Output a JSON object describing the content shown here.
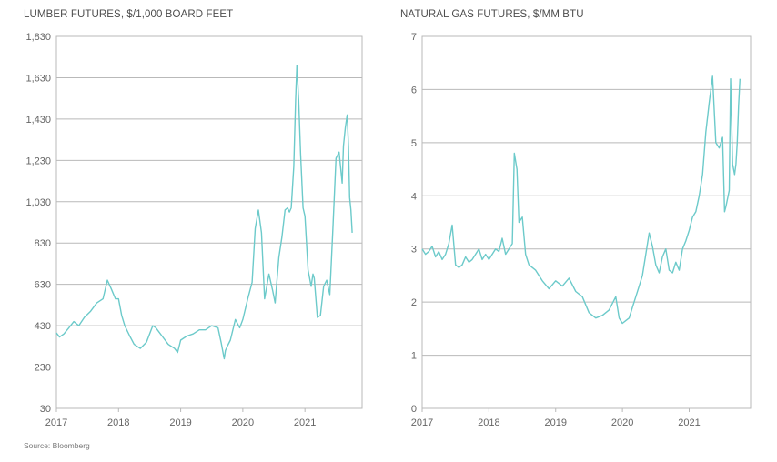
{
  "chart_data": [
    {
      "type": "line",
      "title": "LUMBER FUTURES, $/1,000 BOARD FEET",
      "xlabel": "",
      "ylabel": "",
      "x_ticks": [
        "2017",
        "2018",
        "2019",
        "2020",
        "2021"
      ],
      "y_ticks": [
        "30",
        "230",
        "430",
        "630",
        "830",
        "1,030",
        "1,230",
        "1,430",
        "1,630",
        "1,830"
      ],
      "xlim": [
        2017.0,
        2021.92
      ],
      "ylim": [
        30,
        1830
      ],
      "grid": "horizontal",
      "color": "#6ccaca",
      "series": [
        {
          "x": [
            2017.0,
            2017.05,
            2017.12,
            2017.2,
            2017.28,
            2017.36,
            2017.45,
            2017.55,
            2017.65,
            2017.75,
            2017.82,
            2017.88,
            2017.95,
            2018.0,
            2018.05,
            2018.1,
            2018.18,
            2018.25,
            2018.35,
            2018.45,
            2018.55,
            2018.6,
            2018.7,
            2018.8,
            2018.9,
            2018.95,
            2019.0,
            2019.1,
            2019.2,
            2019.3,
            2019.4,
            2019.5,
            2019.6,
            2019.65,
            2019.7,
            2019.72,
            2019.75,
            2019.8,
            2019.88,
            2019.95,
            2020.0,
            2020.08,
            2020.15,
            2020.2,
            2020.25,
            2020.3,
            2020.35,
            2020.42,
            2020.48,
            2020.52,
            2020.58,
            2020.63,
            2020.68,
            2020.72,
            2020.75,
            2020.78,
            2020.82,
            2020.85,
            2020.87,
            2020.9,
            2020.93,
            2020.97,
            2021.0,
            2021.05,
            2021.1,
            2021.13,
            2021.15,
            2021.2,
            2021.25,
            2021.3,
            2021.35,
            2021.4,
            2021.45,
            2021.5,
            2021.55,
            2021.6,
            2021.62,
            2021.65,
            2021.68,
            2021.7,
            2021.72,
            2021.74,
            2021.76
          ],
          "values": [
            395,
            375,
            390,
            420,
            450,
            430,
            470,
            500,
            540,
            560,
            650,
            610,
            560,
            560,
            480,
            430,
            380,
            340,
            320,
            350,
            430,
            420,
            380,
            340,
            320,
            300,
            360,
            380,
            390,
            410,
            410,
            430,
            420,
            350,
            270,
            310,
            330,
            360,
            460,
            420,
            460,
            560,
            640,
            900,
            990,
            880,
            560,
            680,
            600,
            540,
            760,
            860,
            990,
            1000,
            980,
            1000,
            1200,
            1520,
            1690,
            1520,
            1260,
            1000,
            960,
            700,
            620,
            680,
            660,
            470,
            480,
            620,
            650,
            580,
            900,
            1240,
            1270,
            1120,
            1300,
            1390,
            1450,
            1300,
            1050,
            990,
            880
          ]
        }
      ]
    },
    {
      "type": "line",
      "title": "NATURAL GAS FUTURES, $/MM BTU",
      "xlabel": "",
      "ylabel": "",
      "x_ticks": [
        "2017",
        "2018",
        "2019",
        "2020",
        "2021"
      ],
      "y_ticks": [
        "0",
        "1",
        "2",
        "3",
        "4",
        "5",
        "6",
        "7"
      ],
      "xlim": [
        2017.0,
        2021.92
      ],
      "ylim": [
        0,
        7
      ],
      "grid": "horizontal",
      "color": "#6ccaca",
      "series": [
        {
          "x": [
            2017.0,
            2017.05,
            2017.1,
            2017.15,
            2017.2,
            2017.25,
            2017.3,
            2017.35,
            2017.4,
            2017.45,
            2017.5,
            2017.55,
            2017.6,
            2017.65,
            2017.7,
            2017.75,
            2017.8,
            2017.85,
            2017.9,
            2017.95,
            2018.0,
            2018.05,
            2018.1,
            2018.15,
            2018.2,
            2018.25,
            2018.3,
            2018.35,
            2018.38,
            2018.42,
            2018.45,
            2018.5,
            2018.55,
            2018.6,
            2018.7,
            2018.8,
            2018.9,
            2019.0,
            2019.1,
            2019.2,
            2019.3,
            2019.4,
            2019.5,
            2019.6,
            2019.7,
            2019.8,
            2019.9,
            2019.95,
            2020.0,
            2020.05,
            2020.1,
            2020.15,
            2020.2,
            2020.25,
            2020.3,
            2020.35,
            2020.4,
            2020.45,
            2020.5,
            2020.55,
            2020.6,
            2020.65,
            2020.7,
            2020.75,
            2020.8,
            2020.85,
            2020.9,
            2020.95,
            2021.0,
            2021.05,
            2021.1,
            2021.15,
            2021.2,
            2021.25,
            2021.3,
            2021.35,
            2021.4,
            2021.45,
            2021.5,
            2021.53,
            2021.55,
            2021.6,
            2021.62,
            2021.65,
            2021.68,
            2021.7,
            2021.72,
            2021.74,
            2021.76
          ],
          "values": [
            3.0,
            2.9,
            2.95,
            3.05,
            2.85,
            2.95,
            2.8,
            2.9,
            3.1,
            3.45,
            2.7,
            2.65,
            2.7,
            2.85,
            2.75,
            2.8,
            2.9,
            3.0,
            2.8,
            2.9,
            2.8,
            2.9,
            3.0,
            2.95,
            3.2,
            2.9,
            3.0,
            3.1,
            4.8,
            4.5,
            3.5,
            3.6,
            2.9,
            2.7,
            2.6,
            2.4,
            2.25,
            2.4,
            2.3,
            2.45,
            2.2,
            2.1,
            1.8,
            1.7,
            1.75,
            1.85,
            2.1,
            1.7,
            1.6,
            1.65,
            1.7,
            1.9,
            2.1,
            2.3,
            2.5,
            2.9,
            3.3,
            3.05,
            2.7,
            2.55,
            2.85,
            3.0,
            2.6,
            2.55,
            2.75,
            2.6,
            3.0,
            3.15,
            3.35,
            3.6,
            3.7,
            4.0,
            4.4,
            5.2,
            5.75,
            6.25,
            5.0,
            4.9,
            5.1,
            3.7,
            3.8,
            4.1,
            6.2,
            4.6,
            4.4,
            4.6,
            5.0,
            5.7,
            6.2
          ]
        }
      ]
    }
  ],
  "source": "Source: Bloomberg"
}
